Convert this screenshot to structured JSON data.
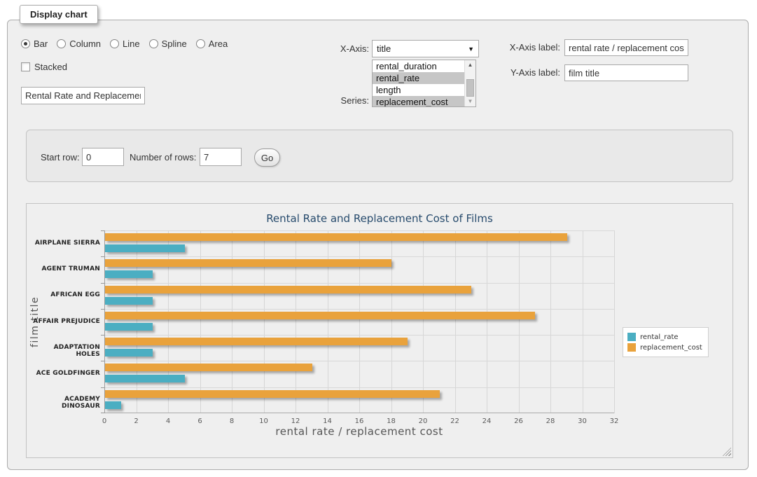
{
  "window": {
    "legend": "Display chart"
  },
  "controls": {
    "chart_types": [
      {
        "label": "Bar",
        "selected": true
      },
      {
        "label": "Column",
        "selected": false
      },
      {
        "label": "Line",
        "selected": false
      },
      {
        "label": "Spline",
        "selected": false
      },
      {
        "label": "Area",
        "selected": false
      }
    ],
    "stacked": {
      "label": "Stacked",
      "checked": false
    },
    "title_input": {
      "value": "Rental Rate and Replacement Cost of Films"
    },
    "x_axis": {
      "label": "X-Axis:",
      "selected_value": "title"
    },
    "series": {
      "label": "Series:",
      "options": [
        {
          "label": "rental_duration",
          "selected": false
        },
        {
          "label": "rental_rate",
          "selected": true
        },
        {
          "label": "length",
          "selected": false
        },
        {
          "label": "replacement_cost",
          "selected": true
        }
      ]
    },
    "x_axis_label": {
      "label": "X-Axis label:",
      "value": "rental rate / replacement cost"
    },
    "y_axis_label": {
      "label": "Y-Axis label:",
      "value": "film title"
    }
  },
  "row_controls": {
    "start_row_label": "Start row:",
    "start_row_value": "0",
    "num_rows_label": "Number of rows:",
    "num_rows_value": "7",
    "go_label": "Go"
  },
  "chart_data": {
    "type": "bar",
    "title": "Rental Rate and Replacement Cost of Films",
    "categories": [
      "AIRPLANE SIERRA",
      "AGENT TRUMAN",
      "AFRICAN EGG",
      "AFFAIR PREJUDICE",
      "ADAPTATION HOLES",
      "ACE GOLDFINGER",
      "ACADEMY DINOSAUR"
    ],
    "series": [
      {
        "name": "rental_rate",
        "color": "#4BAEC2",
        "values": [
          4.99,
          2.99,
          2.99,
          2.99,
          2.99,
          4.99,
          0.99
        ]
      },
      {
        "name": "replacement_cost",
        "color": "#E9A23C",
        "values": [
          28.99,
          17.99,
          22.99,
          26.99,
          18.99,
          12.99,
          20.99
        ]
      }
    ],
    "series_plot_order": "reversed",
    "xlabel": "rental rate / replacement cost",
    "ylabel": "film title",
    "xlim": [
      0,
      32
    ],
    "xtick_step": 2,
    "grid": true,
    "legend_position": "right"
  }
}
